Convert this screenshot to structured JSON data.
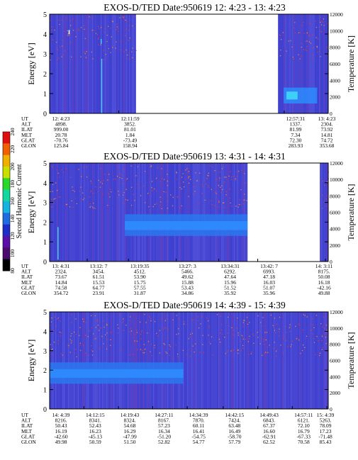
{
  "chart_data": [
    {
      "type": "heatmap",
      "title": "EXOS-D/TED   Date:950619  12: 4:23 - 13: 4:23",
      "ylabel": "Energy [eV]",
      "y2label": "Temperature [K]",
      "ylim": [
        0,
        5
      ],
      "yticks": [
        "0",
        "1",
        "2",
        "3",
        "4",
        "5"
      ],
      "y2lim": [
        0,
        12000
      ],
      "y2ticks": [
        "0",
        "2000",
        "4000",
        "6000",
        "8000",
        "10000",
        "12000"
      ],
      "data_spans": [
        [
          0,
          0.31
        ],
        [
          0.82,
          1
        ]
      ],
      "rows": [
        {
          "label": "UT",
          "values": [
            "12: 4:23",
            "12:11:59",
            "12:57:31",
            "13: 4:23"
          ]
        },
        {
          "label": "ALT",
          "values": [
            "4898.",
            "3852.",
            "1337.",
            "2304."
          ]
        },
        {
          "label": "ILAT",
          "values": [
            "999.00",
            "81.01",
            "81.99",
            "73.92"
          ]
        },
        {
          "label": "MLT",
          "values": [
            "20.78",
            "1.84",
            "7.34",
            "14.81"
          ]
        },
        {
          "label": "GLAT",
          "values": [
            "-70.76",
            "-73.49",
            "72.30",
            "74.72"
          ]
        },
        {
          "label": "GLON",
          "values": [
            "125.84",
            "158.94",
            "283.93",
            "353.68"
          ]
        }
      ]
    },
    {
      "type": "heatmap",
      "title": "EXOS-D/TED   Date:950619  13: 4:31 - 14: 4:31",
      "ylabel": "Energy [eV]",
      "y2label": "Temperature [K]",
      "ylim": [
        0,
        5
      ],
      "yticks": [
        "0",
        "1",
        "2",
        "3",
        "4",
        "5"
      ],
      "y2lim": [
        0,
        12000
      ],
      "y2ticks": [
        "0",
        "2000",
        "4000",
        "6000",
        "8000",
        "10000",
        "12000"
      ],
      "data_spans": [
        [
          0,
          0.71
        ],
        [
          0.97,
          1
        ]
      ],
      "rows": [
        {
          "label": "UT",
          "values": [
            "13: 4:31",
            "13:12: 7",
            "13:19:35",
            "13:27: 3",
            "13:34:31",
            "13:42: 7",
            "14: 3:11"
          ]
        },
        {
          "label": "ALT",
          "values": [
            "2324.",
            "3454.",
            "4512.",
            "5466.",
            "6292.",
            "6993.",
            "8175."
          ]
        },
        {
          "label": "ILAT",
          "values": [
            "73.67",
            "61.51",
            "53.90",
            "49.62",
            "47.64",
            "47.18",
            "50.08"
          ]
        },
        {
          "label": "MLT",
          "values": [
            "14.84",
            "15.53",
            "15.75",
            "15.88",
            "15.96",
            "16.03",
            "16.18"
          ]
        },
        {
          "label": "GLAT",
          "values": [
            "74.58",
            "64.77",
            "57.55",
            "53.43",
            "51.52",
            "51.07",
            "-42.16"
          ]
        },
        {
          "label": "GLON",
          "values": [
            "354.72",
            "23.91",
            "31.87",
            "34.86",
            "35.92",
            "35.96",
            "49.88"
          ]
        }
      ]
    },
    {
      "type": "heatmap",
      "title": "EXOS-D/TED   Date:950619  14: 4:39 - 15: 4:39",
      "ylabel": "Energy [eV]",
      "y2label": "Temperature [K]",
      "ylim": [
        0,
        5
      ],
      "yticks": [
        "0",
        "1",
        "2",
        "3",
        "4",
        "5"
      ],
      "y2lim": [
        0,
        12000
      ],
      "y2ticks": [
        "0",
        "2000",
        "4000",
        "6000",
        "8000",
        "10000",
        "12000"
      ],
      "data_spans": [
        [
          0,
          1
        ]
      ],
      "rows": [
        {
          "label": "UT",
          "values": [
            "14: 4:39",
            "14:12:15",
            "14:19:43",
            "14:27:11",
            "14:34:39",
            "14:42:15",
            "14:49:43",
            "14:57:11",
            "15: 4:39"
          ]
        },
        {
          "label": "ALT",
          "values": [
            "8216.",
            "8341.",
            "8324.",
            "8167.",
            "7870.",
            "7424.",
            "6843.",
            "6121.",
            "5263."
          ]
        },
        {
          "label": "ILAT",
          "values": [
            "50.43",
            "52.43",
            "54.68",
            "57.23",
            "60.11",
            "63.48",
            "67.37",
            "72.10",
            "78.09"
          ]
        },
        {
          "label": "MLT",
          "values": [
            "16.19",
            "16.23",
            "16.29",
            "16.34",
            "16.41",
            "16.49",
            "16.60",
            "16.79",
            "17.23"
          ]
        },
        {
          "label": "GLAT",
          "values": [
            "-42.60",
            "-45.13",
            "-47.99",
            "-51.20",
            "-54.75",
            "-58.70",
            "-62.91",
            "-67.33",
            "-71.48"
          ]
        },
        {
          "label": "GLON",
          "values": [
            "49.98",
            "50.59",
            "51.50",
            "52.82",
            "54.77",
            "57.79",
            "62.52",
            "70.58",
            "85.43"
          ]
        }
      ]
    }
  ],
  "colorbar": {
    "label": "Second Harmonic Current",
    "ticks": [
      "80",
      "100",
      "120",
      "140",
      "160",
      "180",
      "200",
      "220",
      "240"
    ],
    "colors": [
      "#000000",
      "#4a0a6e",
      "#5a0fa8",
      "#1f2dc8",
      "#1f6be0",
      "#18b4e0",
      "#12d8a0",
      "#2ad82a",
      "#c8e000",
      "#f0b000",
      "#f06000",
      "#e01010"
    ]
  }
}
